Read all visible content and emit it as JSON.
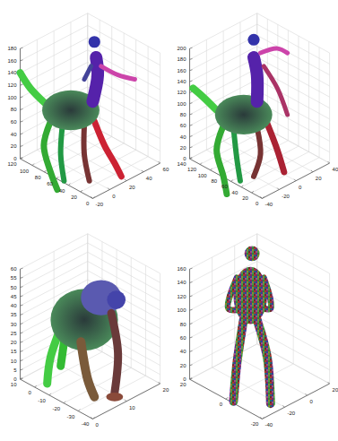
{
  "chart_data": [
    {
      "type": "mesh",
      "grid": true,
      "xlim": [
        -20,
        60
      ],
      "xticks": [
        -20,
        0,
        20,
        40,
        60
      ],
      "ylim": [
        0,
        120
      ],
      "yticks": [
        0,
        20,
        40,
        60,
        80,
        100,
        120
      ],
      "zlim": [
        0,
        180
      ],
      "zticks": [
        0,
        20,
        40,
        60,
        80,
        100,
        120,
        140,
        160,
        180
      ]
    },
    {
      "type": "mesh",
      "grid": true,
      "xlim": [
        -40,
        40
      ],
      "xticks": [
        -40,
        -20,
        0,
        20,
        40
      ],
      "ylim": [
        0,
        140
      ],
      "yticks": [
        0,
        20,
        40,
        60,
        80,
        100,
        120,
        140
      ],
      "zlim": [
        0,
        200
      ],
      "zticks": [
        0,
        20,
        40,
        60,
        80,
        100,
        120,
        140,
        160,
        180,
        200
      ]
    },
    {
      "type": "mesh",
      "grid": true,
      "xlim": [
        0,
        20
      ],
      "xticks": [
        0,
        10,
        20
      ],
      "ylim": [
        -40,
        10
      ],
      "yticks": [
        -40,
        -30,
        -20,
        -10,
        0,
        10
      ],
      "zlim": [
        0,
        60
      ],
      "zticks": [
        0,
        5,
        10,
        15,
        20,
        25,
        30,
        35,
        40,
        45,
        50,
        55,
        60
      ]
    },
    {
      "type": "mesh",
      "grid": true,
      "xlim": [
        -40,
        20
      ],
      "xticks": [
        -40,
        -20,
        0,
        20
      ],
      "ylim": [
        -20,
        20
      ],
      "yticks": [
        -20,
        0,
        20
      ],
      "zlim": [
        0,
        160
      ],
      "zticks": [
        0,
        20,
        40,
        60,
        80,
        100,
        120,
        140,
        160
      ]
    }
  ]
}
